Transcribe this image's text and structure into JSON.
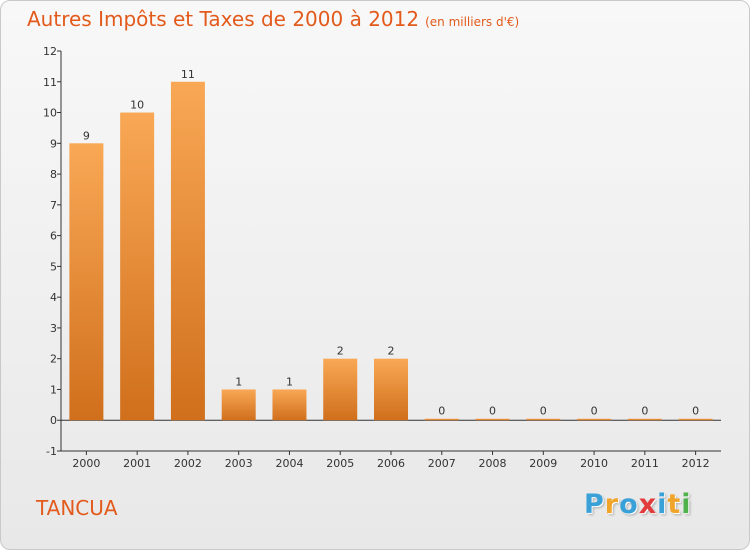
{
  "header": {
    "title": "Autres Impôts et Taxes de 2000 à 2012",
    "subtitle": "(en milliers d'€)"
  },
  "footer": {
    "commune": "TANCUA",
    "logo_letters": [
      "P",
      "r",
      "o",
      "x",
      "i",
      "t",
      "i"
    ],
    "logo_colors": [
      "#3aa0d8",
      "#f0a52a",
      "#3aa0d8",
      "#e23b3b",
      "#3aa0d8",
      "#f0a52a",
      "#4fb24a"
    ]
  },
  "colors": {
    "title": "#e25a1c",
    "bar_light": "#f9a855",
    "bar_dark": "#d06f1c"
  },
  "chart_data": {
    "type": "bar",
    "categories": [
      "2000",
      "2001",
      "2002",
      "2003",
      "2004",
      "2005",
      "2006",
      "2007",
      "2008",
      "2009",
      "2010",
      "2011",
      "2012"
    ],
    "values": [
      9,
      10,
      11,
      1,
      1,
      2,
      2,
      0,
      0,
      0,
      0,
      0,
      0
    ],
    "ylim": [
      -1,
      12
    ],
    "yticks": [
      -1,
      0,
      1,
      2,
      3,
      4,
      5,
      6,
      7,
      8,
      9,
      10,
      11,
      12
    ],
    "xlabel": "",
    "ylabel": "",
    "grid": false,
    "data_labels": true
  }
}
